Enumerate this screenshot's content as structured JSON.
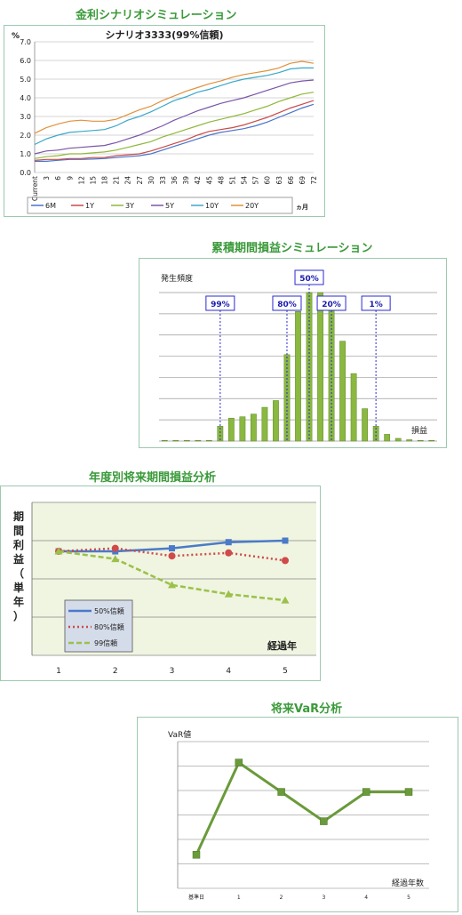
{
  "section1": {
    "heading": "金利シナリオシミュレーション",
    "chart_data": {
      "type": "line",
      "title": "シナリオ3333(99%信頼)",
      "ylabel": "%",
      "xlabel": "ヵ月",
      "ylim": [
        0,
        7
      ],
      "yticks": [
        "0.0",
        "1.0",
        "2.0",
        "3.0",
        "4.0",
        "5.0",
        "6.0",
        "7.0"
      ],
      "x": [
        "Current",
        "3",
        "6",
        "9",
        "12",
        "15",
        "18",
        "21",
        "24",
        "27",
        "30",
        "33",
        "36",
        "39",
        "42",
        "45",
        "48",
        "51",
        "54",
        "57",
        "60",
        "63",
        "66",
        "69",
        "72"
      ],
      "series": [
        {
          "name": "6M",
          "color": "#4a73c9",
          "values": [
            0.6,
            0.6,
            0.65,
            0.7,
            0.7,
            0.72,
            0.75,
            0.8,
            0.85,
            0.9,
            1.0,
            1.2,
            1.4,
            1.6,
            1.8,
            2.0,
            2.15,
            2.25,
            2.35,
            2.5,
            2.7,
            2.95,
            3.2,
            3.45,
            3.65
          ]
        },
        {
          "name": "1Y",
          "color": "#c94a4a",
          "values": [
            0.65,
            0.7,
            0.7,
            0.75,
            0.75,
            0.8,
            0.8,
            0.9,
            0.95,
            1.0,
            1.15,
            1.35,
            1.55,
            1.75,
            2.0,
            2.2,
            2.3,
            2.4,
            2.55,
            2.75,
            2.95,
            3.2,
            3.45,
            3.65,
            3.85
          ]
        },
        {
          "name": "3Y",
          "color": "#8fb83a",
          "values": [
            0.75,
            0.85,
            0.9,
            1.0,
            1.0,
            1.05,
            1.1,
            1.2,
            1.35,
            1.5,
            1.65,
            1.9,
            2.1,
            2.3,
            2.5,
            2.7,
            2.85,
            3.0,
            3.15,
            3.35,
            3.55,
            3.8,
            4.0,
            4.2,
            4.3
          ]
        },
        {
          "name": "5Y",
          "color": "#7a55a8",
          "values": [
            1.0,
            1.15,
            1.2,
            1.3,
            1.35,
            1.4,
            1.45,
            1.6,
            1.8,
            2.0,
            2.25,
            2.5,
            2.8,
            3.05,
            3.3,
            3.5,
            3.7,
            3.85,
            4.0,
            4.2,
            4.4,
            4.6,
            4.8,
            4.9,
            4.95
          ]
        },
        {
          "name": "10Y",
          "color": "#3aa8c9",
          "values": [
            1.5,
            1.8,
            2.0,
            2.15,
            2.2,
            2.25,
            2.3,
            2.5,
            2.8,
            3.0,
            3.25,
            3.55,
            3.85,
            4.05,
            4.3,
            4.45,
            4.65,
            4.85,
            5.0,
            5.1,
            5.2,
            5.35,
            5.55,
            5.6,
            5.6
          ]
        },
        {
          "name": "20Y",
          "color": "#e0913a",
          "values": [
            2.1,
            2.4,
            2.6,
            2.75,
            2.8,
            2.75,
            2.75,
            2.85,
            3.1,
            3.35,
            3.55,
            3.85,
            4.1,
            4.35,
            4.55,
            4.75,
            4.9,
            5.1,
            5.25,
            5.35,
            5.45,
            5.6,
            5.85,
            5.95,
            5.85
          ]
        }
      ]
    }
  },
  "section2": {
    "heading": "累積期間損益シミュレーション",
    "chart_data": {
      "type": "bar",
      "ylabel": "発生頻度",
      "xlabel": "損益",
      "ylim": [
        0,
        110
      ],
      "values": [
        0.5,
        0.5,
        0.5,
        0.5,
        0.5,
        11,
        17,
        18,
        20,
        25,
        30,
        64,
        96,
        110,
        110,
        99,
        74,
        50,
        24,
        11,
        5,
        2,
        1,
        0.5,
        0.5
      ],
      "markers": [
        {
          "label": "99%",
          "index": 5
        },
        {
          "label": "80%",
          "index": 11
        },
        {
          "label": "50%",
          "index": 13
        },
        {
          "label": "20%",
          "index": 15
        },
        {
          "label": "1%",
          "index": 19
        }
      ]
    }
  },
  "section3": {
    "heading": "年度別将来期間損益分析",
    "chart_data": {
      "type": "line",
      "ylabel": "期間利益（単年）",
      "xlabel": "経過年",
      "categories": [
        "1",
        "2",
        "3",
        "4",
        "5"
      ],
      "ylim": [
        0,
        100
      ],
      "series": [
        {
          "name": "50%信頼",
          "color": "#4a7ac9",
          "values": [
            68,
            68,
            70,
            74,
            75
          ]
        },
        {
          "name": "80%信頼",
          "color": "#d04a4a",
          "values": [
            68,
            70,
            65,
            67,
            62
          ]
        },
        {
          "name": "99信頼",
          "color": "#9cc04a",
          "values": [
            68,
            63,
            46,
            40,
            36
          ]
        }
      ]
    }
  },
  "section4": {
    "heading": "将来VaR分析",
    "chart_data": {
      "type": "line",
      "ylabel": "VaR値",
      "xlabel": "経過年数",
      "categories": [
        "基準日",
        "1",
        "2",
        "3",
        "4",
        "5"
      ],
      "ylim": [
        0,
        7
      ],
      "series": [
        {
          "name": "",
          "color": "#6a9a3a",
          "values": [
            1.6,
            6,
            4.6,
            3.2,
            4.6,
            4.6
          ]
        }
      ]
    }
  }
}
